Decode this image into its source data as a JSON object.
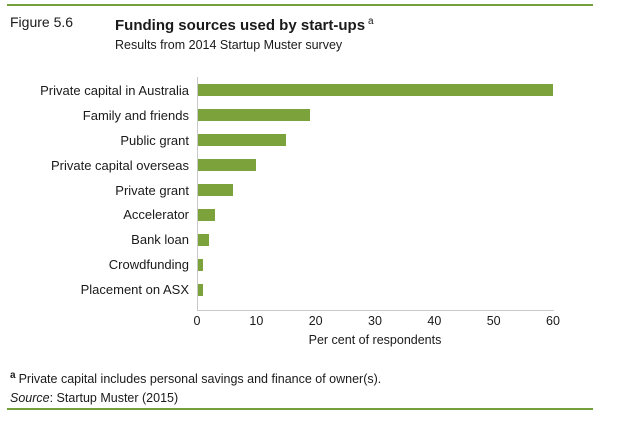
{
  "figure": {
    "number": "Figure 5.6",
    "title": "Funding sources used by start-ups",
    "title_note_marker": "a",
    "subtitle": "Results from 2014 Startup Muster survey"
  },
  "chart_data": {
    "type": "bar",
    "orientation": "horizontal",
    "title": "Funding sources used by start-ups",
    "subtitle": "Results from 2014 Startup Muster survey",
    "categories": [
      "Private capital in Australia",
      "Family and friends",
      "Public grant",
      "Private capital overseas",
      "Private grant",
      "Accelerator",
      "Bank loan",
      "Crowdfunding",
      "Placement on ASX"
    ],
    "values": [
      60,
      19,
      15,
      10,
      6,
      3,
      2,
      1,
      1
    ],
    "xlabel": "Per cent of respondents",
    "xlim": [
      0,
      60
    ],
    "xticks": [
      0,
      10,
      20,
      30,
      40,
      50,
      60
    ],
    "grid": false,
    "legend": "none",
    "bar_color": "#7BA23B",
    "axis_color": "#C9C9C9"
  },
  "footnote": {
    "marker": "a",
    "text": "Private capital includes personal savings and finance of owner(s)."
  },
  "source": {
    "label": "Source",
    "text": ": Startup Muster (2015)"
  },
  "colors": {
    "rule_green": "#74A03C",
    "bar_green": "#7BA23B",
    "axis_gray": "#C9C9C9"
  }
}
